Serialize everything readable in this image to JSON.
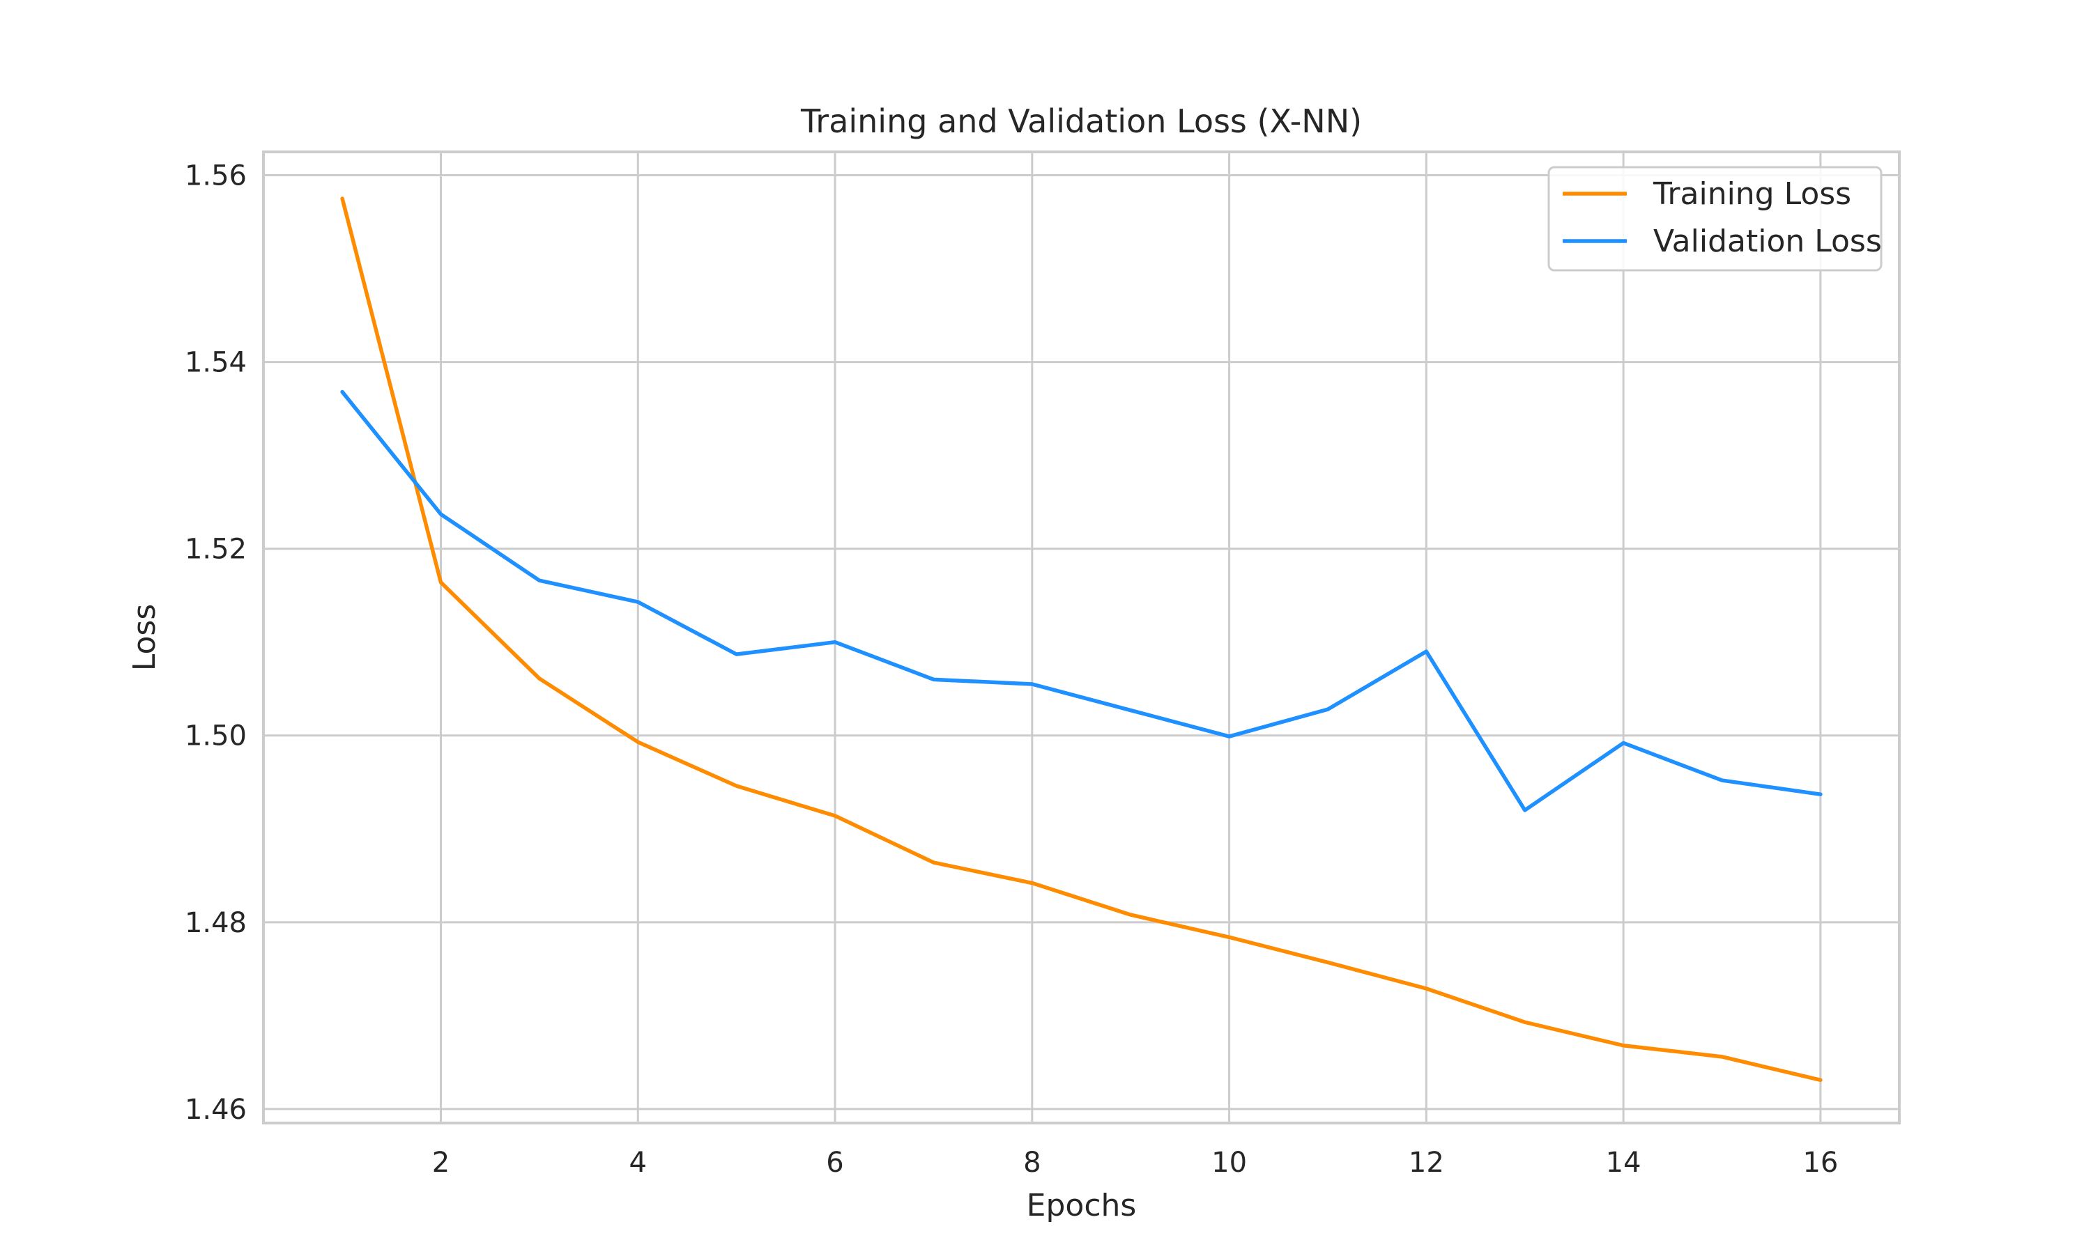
{
  "chart_data": {
    "type": "line",
    "title": "Training and Validation Loss (X-NN)",
    "xlabel": "Epochs",
    "ylabel": "Loss",
    "xlim": [
      0.2,
      16.8
    ],
    "ylim": [
      1.4585,
      1.5625
    ],
    "xticks": [
      2,
      4,
      6,
      8,
      10,
      12,
      14,
      16
    ],
    "yticks": [
      1.46,
      1.48,
      1.5,
      1.52,
      1.54,
      1.56
    ],
    "xtick_labels": [
      "2",
      "4",
      "6",
      "8",
      "10",
      "12",
      "14",
      "16"
    ],
    "ytick_labels": [
      "1.46",
      "1.48",
      "1.50",
      "1.52",
      "1.54",
      "1.56"
    ],
    "grid": true,
    "legend_position": "top-right",
    "x": [
      1,
      2,
      3,
      4,
      5,
      6,
      7,
      8,
      9,
      10,
      11,
      12,
      13,
      14,
      15,
      16
    ],
    "series": [
      {
        "name": "Training Loss",
        "color": "#ff8c00",
        "values": [
          1.5575,
          1.5164,
          1.5061,
          1.4993,
          1.4946,
          1.4914,
          1.4864,
          1.4842,
          1.4808,
          1.4784,
          1.4757,
          1.4729,
          1.4693,
          1.4668,
          1.4656,
          1.4631
        ]
      },
      {
        "name": "Validation Loss",
        "color": "#1e90ff",
        "values": [
          1.5368,
          1.5237,
          1.5166,
          1.5143,
          1.5087,
          1.51,
          1.506,
          1.5055,
          1.5027,
          1.4999,
          1.5028,
          1.509,
          1.492,
          1.4992,
          1.4952,
          1.4937
        ]
      }
    ]
  }
}
